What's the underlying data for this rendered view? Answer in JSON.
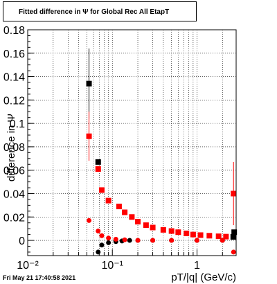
{
  "title": "Fitted difference in  Ψ  for Global Rec All EtapT",
  "timestamp": "Fri May 21 17:40:58 2021",
  "chart_data": {
    "type": "scatter",
    "title": "Fitted difference in  Ψ  for Global Rec All EtapT",
    "xlabel": "pT/|q| (GeV/c)",
    "ylabel": "difference in  Ψ",
    "xscale": "log",
    "xlim": [
      0.01,
      2.9
    ],
    "ylim": [
      -0.013,
      0.18
    ],
    "grid": true,
    "xticks": [
      {
        "value": 0.01,
        "label": "10⁻²"
      },
      {
        "value": 0.1,
        "label": "10⁻¹"
      },
      {
        "value": 1,
        "label": "1"
      }
    ],
    "yticks": [
      {
        "value": 0,
        "label": "0"
      },
      {
        "value": 0.02,
        "label": "0.02"
      },
      {
        "value": 0.04,
        "label": "0.04"
      },
      {
        "value": 0.06,
        "label": "0.06"
      },
      {
        "value": 0.08,
        "label": "0.08"
      },
      {
        "value": 0.1,
        "label": "0.1"
      },
      {
        "value": 0.12,
        "label": "0.12"
      },
      {
        "value": 0.14,
        "label": "0.14"
      },
      {
        "value": 0.16,
        "label": "0.16"
      },
      {
        "value": 0.18,
        "label": "0.18"
      }
    ],
    "series": [
      {
        "marker": "square",
        "color": "#000000",
        "points": [
          {
            "x": 0.053,
            "y": 0.134,
            "yerr": 0.03
          },
          {
            "x": 0.068,
            "y": 0.067,
            "yerr": 0.002
          },
          {
            "x": 2.75,
            "y": 0.007,
            "yerr": 0.002
          },
          {
            "x": 2.68,
            "y": 0.003,
            "yerr": 0.001
          }
        ]
      },
      {
        "marker": "square",
        "color": "#ff0000",
        "points": [
          {
            "x": 0.053,
            "y": 0.089,
            "yerr": 0.021
          },
          {
            "x": 0.068,
            "y": 0.061,
            "yerr": 0.001
          },
          {
            "x": 0.075,
            "y": 0.043
          },
          {
            "x": 0.09,
            "y": 0.034
          },
          {
            "x": 0.12,
            "y": 0.029
          },
          {
            "x": 0.14,
            "y": 0.024
          },
          {
            "x": 0.17,
            "y": 0.02
          },
          {
            "x": 0.2,
            "y": 0.016
          },
          {
            "x": 0.25,
            "y": 0.013
          },
          {
            "x": 0.3,
            "y": 0.011
          },
          {
            "x": 0.4,
            "y": 0.009
          },
          {
            "x": 0.5,
            "y": 0.008
          },
          {
            "x": 0.6,
            "y": 0.007
          },
          {
            "x": 0.75,
            "y": 0.006
          },
          {
            "x": 0.9,
            "y": 0.005
          },
          {
            "x": 1.1,
            "y": 0.0045
          },
          {
            "x": 1.4,
            "y": 0.004
          },
          {
            "x": 1.8,
            "y": 0.0035
          },
          {
            "x": 2.2,
            "y": 0.0032
          },
          {
            "x": 2.7,
            "y": 0.04,
            "yerr": 0.027
          }
        ]
      },
      {
        "marker": "circle",
        "color": "#000000",
        "points": [
          {
            "x": 0.068,
            "y": -0.01
          },
          {
            "x": 0.075,
            "y": -0.004
          },
          {
            "x": 0.09,
            "y": -0.002
          },
          {
            "x": 0.11,
            "y": -0.001
          },
          {
            "x": 0.13,
            "y": -0.0005
          },
          {
            "x": 0.16,
            "y": 0.0
          },
          {
            "x": 0.2,
            "y": 0.0
          },
          {
            "x": 0.3,
            "y": 0.0
          },
          {
            "x": 0.5,
            "y": 0.0
          },
          {
            "x": 1.0,
            "y": 0.0
          },
          {
            "x": 2.0,
            "y": 0.0
          }
        ]
      },
      {
        "marker": "circle",
        "color": "#ff0000",
        "points": [
          {
            "x": 0.053,
            "y": 0.017
          },
          {
            "x": 0.068,
            "y": 0.008
          },
          {
            "x": 0.075,
            "y": 0.004
          },
          {
            "x": 0.09,
            "y": 0.002
          },
          {
            "x": 0.11,
            "y": 0.001
          },
          {
            "x": 0.14,
            "y": 0.0005
          },
          {
            "x": 0.2,
            "y": 0.0
          },
          {
            "x": 0.3,
            "y": 0.0
          },
          {
            "x": 0.5,
            "y": 0.0
          },
          {
            "x": 1.0,
            "y": 0.0
          },
          {
            "x": 2.0,
            "y": 0.0
          },
          {
            "x": 2.7,
            "y": -0.01
          }
        ]
      }
    ]
  }
}
